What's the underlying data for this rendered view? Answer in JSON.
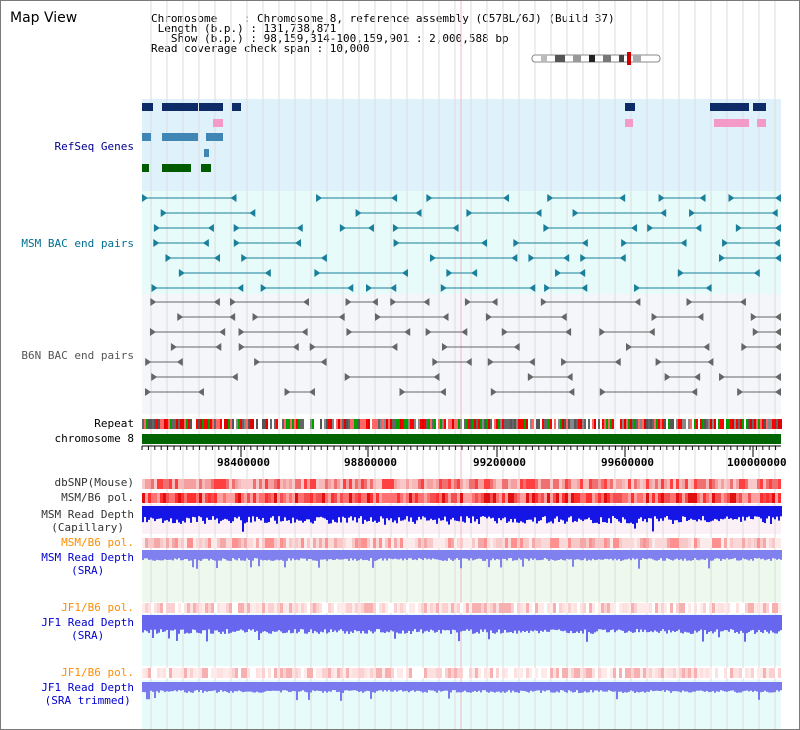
{
  "header": {
    "title": "Map View",
    "info_lines": [
      "Chromosome    : Chromosome 8, reference assembly (C57BL/6J) (Build 37)",
      " Length (b.p.) : 131,738,871",
      "   Show (b.p.) : 98,159,314-100,159,901 : 2,000,588 bp",
      "Read coverage check span : 10,000"
    ]
  },
  "tracks": {
    "refseq": {
      "label": "RefSeq Genes",
      "color": "#00008b"
    },
    "msm_bac": {
      "label": "MSM BAC end pairs",
      "color": "#006f8f"
    },
    "b6n_bac": {
      "label": "B6N BAC end pairs",
      "color": "#555555"
    },
    "repeat": {
      "label": "Repeat"
    },
    "chromosome": {
      "label": "chromosome 8",
      "color": "#006400"
    },
    "dbsnp": {
      "label": "dbSNP(Mouse)"
    },
    "msm_b6_pol": {
      "label": "MSM/B6 pol."
    },
    "msm_depth_cap": {
      "line1": "MSM Read Depth",
      "line2": "(Capillary)"
    },
    "msm_b6_pol2": {
      "label": "MSM/B6 pol.",
      "color": "#ff8c00"
    },
    "msm_depth_sra": {
      "line1": "MSM Read Depth",
      "line2": "(SRA)"
    },
    "jf1_b6_pol": {
      "label": "JF1/B6 pol.",
      "color": "#ff8c00"
    },
    "jf1_depth_sra": {
      "line1": "JF1 Read Depth",
      "line2": "(SRA)"
    },
    "jf1_b6_pol2": {
      "label": "JF1/B6 pol.",
      "color": "#ff8c00"
    },
    "jf1_depth_trim": {
      "line1": "JF1 Read Depth",
      "line2": "(SRA trimmed)"
    }
  },
  "axis": {
    "ticks": [
      "98400000",
      "98800000",
      "99200000",
      "99600000",
      "100000000"
    ]
  }
}
